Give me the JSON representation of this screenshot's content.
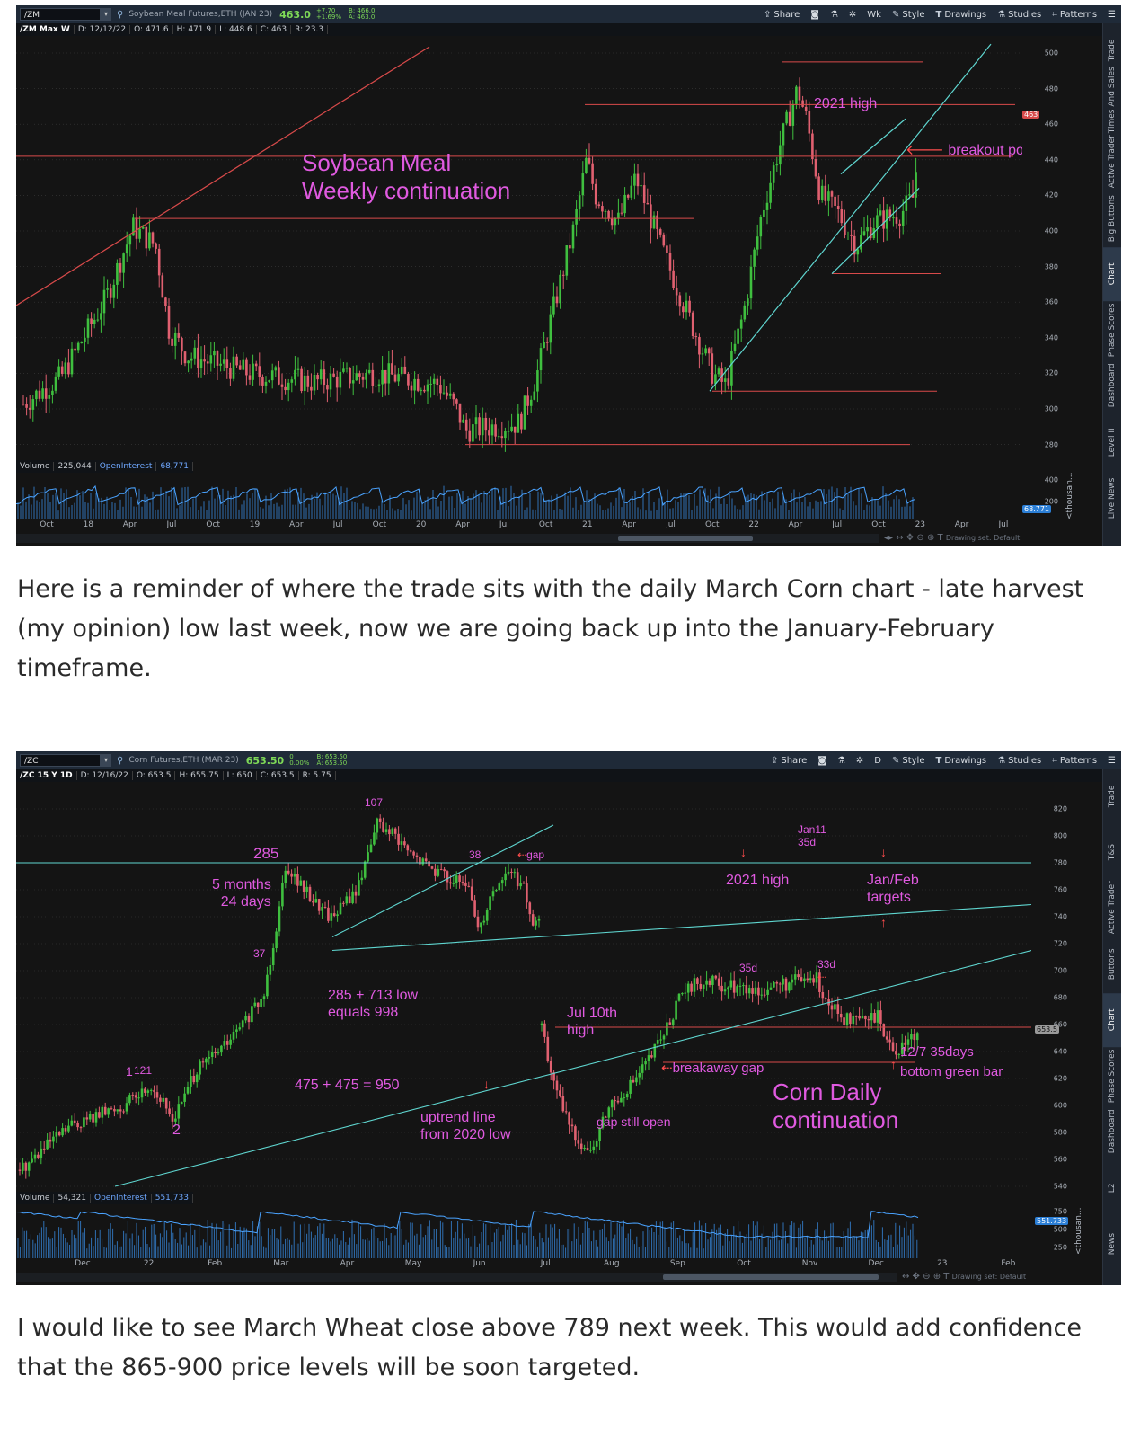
{
  "chart1": {
    "toolbar": {
      "symbol": "/ZM",
      "description": "Soybean Meal Futures,ETH (JAN 23)",
      "last_price": "463.0",
      "change_line1": "+7.70",
      "change_line2": "+1.69%",
      "bid": "B: 466.0",
      "ask": "A: 463.0",
      "share": "Share",
      "period": "Wk",
      "style": "Style",
      "drawings": "Drawings",
      "studies": "Studies",
      "patterns": "Patterns"
    },
    "ohlc": {
      "symbol": "/ZM Max W",
      "date": "D: 12/12/22",
      "open": "O: 471.6",
      "high": "H: 471.9",
      "low": "L: 448.6",
      "close": "C: 463",
      "range": "R: 23.3"
    },
    "annotations": {
      "title_line1": "Soybean Meal",
      "title_line2": "Weekly continuation",
      "high_2021": "2021 high",
      "breakout": "breakout point"
    },
    "y_ticks": [
      "500",
      "480",
      "460",
      "440",
      "420",
      "400",
      "380",
      "360",
      "340",
      "320",
      "300",
      "280"
    ],
    "price_tag": "463",
    "volume": {
      "label": "Volume",
      "value": "225,044",
      "oi_label": "OpenInterest",
      "oi_value": "68,771"
    },
    "vol_ticks": [
      "400",
      "200"
    ],
    "oi_tag": "68.771",
    "x_ticks": [
      "Oct",
      "18",
      "Apr",
      "Jul",
      "Oct",
      "19",
      "Apr",
      "Jul",
      "Oct",
      "20",
      "Apr",
      "Jul",
      "Oct",
      "21",
      "Apr",
      "Jul",
      "Oct",
      "22",
      "Apr",
      "Jul",
      "Oct",
      "23",
      "Apr",
      "Jul"
    ],
    "side_tabs": [
      "Trade",
      "Times And Sales",
      "Active Trader",
      "Big Buttons",
      "Chart",
      "Phase Scores",
      "Dashboard",
      "Level II",
      "Live News"
    ],
    "active_tab": "Chart",
    "vol_unit": "<thousan...",
    "drawing_set": "Drawing set: Default"
  },
  "paragraph1": "Here is a reminder of where the trade sits with the daily March Corn chart - late harvest (my opinion) low last week, now we are going back up into the January-February timeframe.",
  "chart2": {
    "toolbar": {
      "symbol": "/ZC",
      "description": "Corn Futures,ETH (MAR 23)",
      "last_price": "653.50",
      "change_line1": "0",
      "change_line2": "0.00%",
      "bid": "B: 653.50",
      "ask": "A: 653.50",
      "share": "Share",
      "period": "D",
      "style": "Style",
      "drawings": "Drawings",
      "studies": "Studies",
      "patterns": "Patterns"
    },
    "ohlc": {
      "symbol": "/ZC 15 Y 1D",
      "date": "D: 12/16/22",
      "open": "O: 653.5",
      "high": "H: 655.75",
      "low": "L: 650",
      "close": "C: 653.5",
      "range": "R: 5.75"
    },
    "annotations": {
      "n107": "107",
      "n38": "38",
      "gap": "gap",
      "n285": "285",
      "months_line1": "5 months",
      "months_line2": "24 days",
      "n37": "37",
      "jan11_line1": "Jan11",
      "jan11_line2": "35d",
      "high_2021": "2021 high",
      "targets_line1": "Jan/Feb",
      "targets_line2": "targets",
      "sum_line1": "285 + 713 low",
      "sum_line2": "equals 998",
      "n35d": "35d",
      "n33d": "33d",
      "jul10_line1": "Jul 10th",
      "jul10_line2": "high",
      "n1": "1",
      "n121": "121",
      "n2": "2",
      "sum2": "475 + 475 = 950",
      "breakaway": "breakaway gap",
      "dec7": "12/7 35days",
      "bottom_bar": "bottom green bar",
      "uptrend_line1": "uptrend line",
      "uptrend_line2": "from 2020 low",
      "gap_open": "gap still open",
      "title_line1": "Corn Daily",
      "title_line2": "continuation"
    },
    "y_ticks": [
      "820",
      "800",
      "780",
      "760",
      "740",
      "720",
      "700",
      "680",
      "660",
      "640",
      "620",
      "600",
      "580",
      "560",
      "540"
    ],
    "price_tag": "653.5",
    "volume": {
      "label": "Volume",
      "value": "54,321",
      "oi_label": "OpenInterest",
      "oi_value": "551,733"
    },
    "vol_ticks": [
      "750",
      "500",
      "250"
    ],
    "oi_tag": "551.733",
    "x_ticks": [
      "Dec",
      "22",
      "Feb",
      "Mar",
      "Apr",
      "May",
      "Jun",
      "Jul",
      "Aug",
      "Sep",
      "Oct",
      "Nov",
      "Dec",
      "23",
      "Feb"
    ],
    "side_tabs": [
      "Trade",
      "T&S",
      "Active Trader",
      "Buttons",
      "Chart",
      "Phase Scores",
      "Dashboard",
      "L2",
      "News"
    ],
    "active_tab": "Chart",
    "vol_unit": "<thousan...",
    "drawing_set": "Drawing set: Default"
  },
  "paragraph2": "I would like to see March Wheat close above 789 next week. This would add confidence that the 865-900 price levels will be soon targeted.",
  "colors": {
    "up": "#3fbf3f",
    "down": "#e06070",
    "annotation": "#e05ae0",
    "hline": "#d84a4a",
    "trendline": "#5fd6d0"
  }
}
